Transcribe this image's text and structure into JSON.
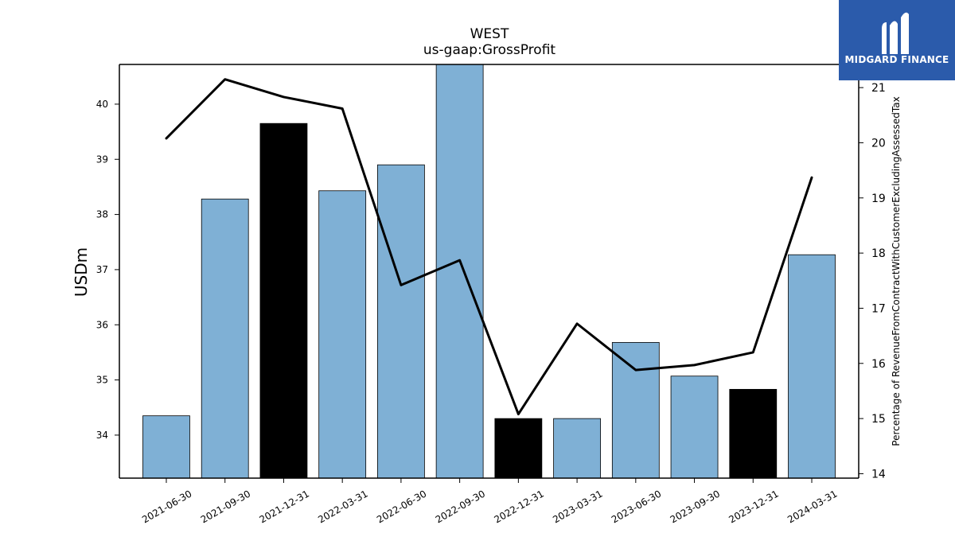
{
  "brand": {
    "name": "MIDGARD FINANCE",
    "background": "#2b5bab"
  },
  "chart_data": {
    "type": "bar",
    "title": "WEST",
    "subtitle": "us-gaap:GrossProfit",
    "ylabel": "USDm",
    "y2label": "Percentage of RevenueFromContractWithCustomerExcludingAssessedTax",
    "categories": [
      "2021-06-30",
      "2021-09-30",
      "2021-12-31",
      "2022-03-31",
      "2022-06-30",
      "2022-09-30",
      "2022-12-31",
      "2023-03-31",
      "2023-06-30",
      "2023-09-30",
      "2023-12-31",
      "2024-03-31"
    ],
    "ylim": [
      33.22,
      40.72
    ],
    "y2lim": [
      13.92,
      21.42
    ],
    "yticks": [
      34,
      35,
      36,
      37,
      38,
      39,
      40
    ],
    "y2ticks": [
      14,
      15,
      16,
      17,
      18,
      19,
      20,
      21
    ],
    "series": [
      {
        "type": "bar",
        "values": [
          34.35,
          38.28,
          39.65,
          38.43,
          38.9,
          40.85,
          34.3,
          34.3,
          35.68,
          35.07,
          34.83,
          37.27
        ],
        "colors": [
          "#7fb0d5",
          "#7fb0d5",
          "#000000",
          "#7fb0d5",
          "#7fb0d5",
          "#7fb0d5",
          "#000000",
          "#7fb0d5",
          "#7fb0d5",
          "#7fb0d5",
          "#000000",
          "#7fb0d5"
        ]
      },
      {
        "type": "line",
        "axis": "right",
        "values": [
          20.08,
          21.15,
          20.83,
          20.62,
          17.42,
          17.87,
          15.08,
          16.72,
          15.88,
          15.97,
          16.2,
          19.37
        ],
        "color": "#000000"
      }
    ],
    "grid": false,
    "legend": "none"
  }
}
